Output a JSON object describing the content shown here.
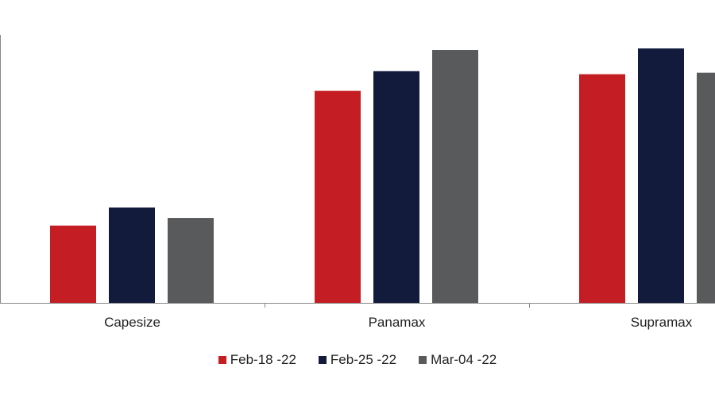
{
  "chart_data": {
    "type": "bar",
    "categories": [
      "Capesize",
      "Panamax",
      "Supramax"
    ],
    "series": [
      {
        "name": "Feb-18 -22",
        "color": "#c41e24",
        "values": [
          0.255,
          0.7,
          0.755
        ]
      },
      {
        "name": "Feb-25 -22",
        "color": "#131b3d",
        "values": [
          0.315,
          0.765,
          0.84
        ]
      },
      {
        "name": "Mar-04 -22",
        "color": "#595a5b",
        "values": [
          0.28,
          0.835,
          0.76
        ]
      }
    ],
    "ylim": [
      0,
      1
    ],
    "title": "",
    "xlabel": "",
    "ylabel": "",
    "grid": false,
    "legend_position": "bottom"
  }
}
